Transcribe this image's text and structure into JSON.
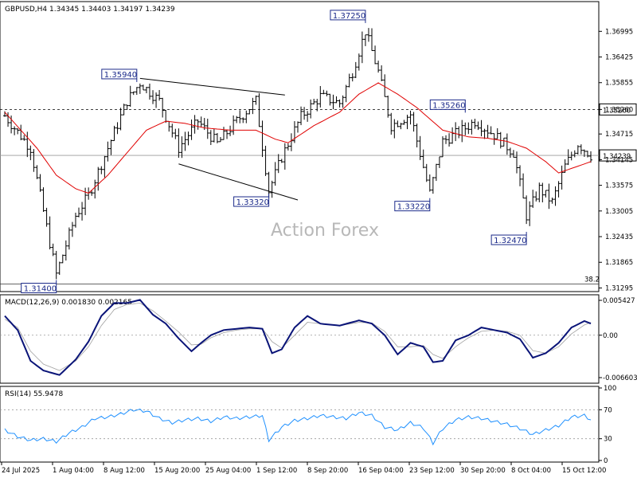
{
  "chart_data": [
    {
      "type": "ohlc",
      "title": "GBPUSD,H4",
      "ohlc_header": {
        "open": "1.34345",
        "high": "1.34403",
        "low": "1.34197",
        "close": "1.34239"
      },
      "watermark": "Action Forex",
      "y_ticks": [
        "1.36995",
        "1.36425",
        "1.35855",
        "1.35260",
        "1.34715",
        "1.34145",
        "1.33575",
        "1.33005",
        "1.32435",
        "1.31865",
        "1.31295"
      ],
      "ylim": [
        1.3125,
        1.3762
      ],
      "current_price": {
        "value": 1.34239,
        "label": "1.34239"
      },
      "reference_line": {
        "value": 1.3526,
        "label": "1.35260",
        "style": "dashed"
      },
      "fib_line": {
        "value": 1.314,
        "label": "38.2"
      },
      "annotations": [
        {
          "label": "1.37250",
          "value": 1.3725,
          "index": 112
        },
        {
          "label": "1.35940",
          "value": 1.3594,
          "index": 41
        },
        {
          "label": "1.35260",
          "value": 1.3526,
          "index": 143
        },
        {
          "label": "1.33320",
          "value": 1.3332,
          "index": 82
        },
        {
          "label": "1.33220",
          "value": 1.3322,
          "index": 132
        },
        {
          "label": "1.32470",
          "value": 1.3247,
          "index": 162
        },
        {
          "label": "1.31400",
          "value": 1.314,
          "index": 16
        }
      ],
      "trendlines": [
        {
          "from": {
            "index": 42,
            "value": 1.3595
          },
          "to": {
            "index": 87,
            "value": 1.3558
          }
        },
        {
          "from": {
            "index": 54,
            "value": 1.3405
          },
          "to": {
            "index": 91,
            "value": 1.3325
          }
        }
      ],
      "x_labels": [
        "24 Jul 2025",
        "1 Aug 04:00",
        "8 Aug 12:00",
        "15 Aug 20:00",
        "25 Aug 04:00",
        "1 Sep 12:00",
        "8 Sep 20:00",
        "16 Sep 04:00",
        "23 Sep 12:00",
        "30 Sep 20:00",
        "8 Oct 04:00",
        "15 Oct 12:00"
      ],
      "key_closes": [
        [
          0,
          1.3512
        ],
        [
          8,
          1.344
        ],
        [
          16,
          1.316
        ],
        [
          22,
          1.329
        ],
        [
          26,
          1.3335
        ],
        [
          32,
          1.344
        ],
        [
          38,
          1.3545
        ],
        [
          42,
          1.3585
        ],
        [
          48,
          1.3545
        ],
        [
          54,
          1.344
        ],
        [
          60,
          1.35
        ],
        [
          66,
          1.345
        ],
        [
          72,
          1.35
        ],
        [
          78,
          1.3545
        ],
        [
          82,
          1.3345
        ],
        [
          86,
          1.342
        ],
        [
          92,
          1.351
        ],
        [
          98,
          1.3555
        ],
        [
          104,
          1.354
        ],
        [
          108,
          1.361
        ],
        [
          112,
          1.37
        ],
        [
          116,
          1.361
        ],
        [
          120,
          1.349
        ],
        [
          126,
          1.3515
        ],
        [
          132,
          1.334
        ],
        [
          136,
          1.3455
        ],
        [
          142,
          1.348
        ],
        [
          146,
          1.35
        ],
        [
          152,
          1.347
        ],
        [
          158,
          1.343
        ],
        [
          162,
          1.329
        ],
        [
          166,
          1.335
        ],
        [
          170,
          1.332
        ],
        [
          174,
          1.34
        ],
        [
          178,
          1.345
        ],
        [
          182,
          1.3424
        ]
      ],
      "moving_average": {
        "color": "#e00000",
        "points": [
          [
            0,
            1.352
          ],
          [
            10,
            1.344
          ],
          [
            16,
            1.338
          ],
          [
            22,
            1.335
          ],
          [
            26,
            1.334
          ],
          [
            32,
            1.338
          ],
          [
            38,
            1.343
          ],
          [
            44,
            1.348
          ],
          [
            50,
            1.35
          ],
          [
            56,
            1.3495
          ],
          [
            62,
            1.3485
          ],
          [
            70,
            1.348
          ],
          [
            78,
            1.348
          ],
          [
            84,
            1.346
          ],
          [
            88,
            1.3452
          ],
          [
            96,
            1.349
          ],
          [
            104,
            1.352
          ],
          [
            110,
            1.356
          ],
          [
            116,
            1.3585
          ],
          [
            122,
            1.356
          ],
          [
            128,
            1.353
          ],
          [
            136,
            1.348
          ],
          [
            144,
            1.3465
          ],
          [
            150,
            1.3462
          ],
          [
            156,
            1.3455
          ],
          [
            162,
            1.344
          ],
          [
            168,
            1.341
          ],
          [
            172,
            1.3385
          ],
          [
            176,
            1.3395
          ],
          [
            182,
            1.341
          ]
        ]
      }
    },
    {
      "type": "line",
      "title": "MACD(12,26,9) 0.001830 0.002165",
      "y_ticks": [
        "0.005427",
        "0.00",
        "-0.006603"
      ],
      "ylim": [
        -0.0071,
        0.0058
      ],
      "series": [
        {
          "color": "#0a1478",
          "points": [
            [
              0,
              0.003
            ],
            [
              4,
              0.0008
            ],
            [
              8,
              -0.004
            ],
            [
              12,
              -0.0055
            ],
            [
              17,
              -0.0062
            ],
            [
              22,
              -0.0038
            ],
            [
              26,
              -0.001
            ],
            [
              30,
              0.003
            ],
            [
              34,
              0.005
            ],
            [
              38,
              0.005
            ],
            [
              42,
              0.0055
            ],
            [
              46,
              0.0032
            ],
            [
              50,
              0.0018
            ],
            [
              54,
              -0.0005
            ],
            [
              58,
              -0.0025
            ],
            [
              61,
              -0.0012
            ],
            [
              64,
              0.0
            ],
            [
              68,
              0.0008
            ],
            [
              72,
              0.001
            ],
            [
              76,
              0.0012
            ],
            [
              80,
              0.001
            ],
            [
              83,
              -0.0028
            ],
            [
              86,
              -0.0022
            ],
            [
              90,
              0.0012
            ],
            [
              94,
              0.003
            ],
            [
              98,
              0.0018
            ],
            [
              104,
              0.0015
            ],
            [
              110,
              0.0023
            ],
            [
              114,
              0.0018
            ],
            [
              118,
              0.0
            ],
            [
              122,
              -0.003
            ],
            [
              126,
              -0.0012
            ],
            [
              130,
              -0.0018
            ],
            [
              133,
              -0.0042
            ],
            [
              136,
              -0.004
            ],
            [
              140,
              -0.0008
            ],
            [
              144,
              0.0
            ],
            [
              148,
              0.0012
            ],
            [
              152,
              0.0008
            ],
            [
              156,
              0.0004
            ],
            [
              160,
              -0.0006
            ],
            [
              164,
              -0.0035
            ],
            [
              168,
              -0.0028
            ],
            [
              172,
              -0.0012
            ],
            [
              176,
              0.0012
            ],
            [
              180,
              0.0022
            ],
            [
              182,
              0.0018
            ]
          ]
        },
        {
          "color": "#a0a0a0",
          "points": [
            [
              0,
              0.0025
            ],
            [
              4,
              0.0012
            ],
            [
              8,
              -0.0025
            ],
            [
              12,
              -0.0045
            ],
            [
              17,
              -0.0055
            ],
            [
              22,
              -0.004
            ],
            [
              26,
              -0.0018
            ],
            [
              30,
              0.0015
            ],
            [
              34,
              0.004
            ],
            [
              38,
              0.0048
            ],
            [
              42,
              0.005
            ],
            [
              46,
              0.0038
            ],
            [
              50,
              0.0022
            ],
            [
              54,
              0.0005
            ],
            [
              58,
              -0.0015
            ],
            [
              61,
              -0.0014
            ],
            [
              64,
              -0.0004
            ],
            [
              68,
              0.0004
            ],
            [
              72,
              0.0008
            ],
            [
              76,
              0.001
            ],
            [
              80,
              0.001
            ],
            [
              83,
              -0.001
            ],
            [
              86,
              -0.002
            ],
            [
              90,
              0.0
            ],
            [
              94,
              0.002
            ],
            [
              98,
              0.0018
            ],
            [
              104,
              0.0015
            ],
            [
              110,
              0.002
            ],
            [
              114,
              0.0019
            ],
            [
              118,
              0.0006
            ],
            [
              122,
              -0.0018
            ],
            [
              126,
              -0.0018
            ],
            [
              130,
              -0.0016
            ],
            [
              133,
              -0.003
            ],
            [
              136,
              -0.0036
            ],
            [
              140,
              -0.0018
            ],
            [
              144,
              -0.0004
            ],
            [
              148,
              0.0006
            ],
            [
              152,
              0.0008
            ],
            [
              156,
              0.0006
            ],
            [
              160,
              0.0
            ],
            [
              164,
              -0.0024
            ],
            [
              168,
              -0.0028
            ],
            [
              172,
              -0.0018
            ],
            [
              176,
              0.0002
            ],
            [
              180,
              0.0016
            ],
            [
              182,
              0.002
            ]
          ]
        }
      ]
    },
    {
      "type": "line",
      "title": "RSI(14) 55.9478",
      "y_ticks": [
        "100",
        "70",
        "30",
        "0"
      ],
      "levels": [
        70,
        30
      ],
      "ylim": [
        0,
        100
      ],
      "series": [
        {
          "color": "#1e90ff",
          "points": [
            [
              0,
              42
            ],
            [
              4,
              33
            ],
            [
              8,
              28
            ],
            [
              12,
              30
            ],
            [
              16,
              26
            ],
            [
              20,
              38
            ],
            [
              24,
              46
            ],
            [
              28,
              58
            ],
            [
              32,
              60
            ],
            [
              36,
              64
            ],
            [
              40,
              70
            ],
            [
              44,
              68
            ],
            [
              48,
              58
            ],
            [
              52,
              52
            ],
            [
              56,
              56
            ],
            [
              60,
              58
            ],
            [
              64,
              54
            ],
            [
              68,
              60
            ],
            [
              72,
              58
            ],
            [
              76,
              60
            ],
            [
              80,
              62
            ],
            [
              82,
              28
            ],
            [
              86,
              46
            ],
            [
              90,
              55
            ],
            [
              94,
              58
            ],
            [
              98,
              62
            ],
            [
              102,
              60
            ],
            [
              106,
              58
            ],
            [
              110,
              66
            ],
            [
              114,
              62
            ],
            [
              118,
              46
            ],
            [
              122,
              42
            ],
            [
              126,
              52
            ],
            [
              130,
              45
            ],
            [
              133,
              24
            ],
            [
              136,
              44
            ],
            [
              140,
              56
            ],
            [
              144,
              60
            ],
            [
              148,
              58
            ],
            [
              152,
              54
            ],
            [
              156,
              50
            ],
            [
              160,
              44
            ],
            [
              164,
              36
            ],
            [
              168,
              42
            ],
            [
              172,
              48
            ],
            [
              176,
              60
            ],
            [
              180,
              62
            ],
            [
              182,
              56
            ]
          ]
        }
      ]
    }
  ]
}
